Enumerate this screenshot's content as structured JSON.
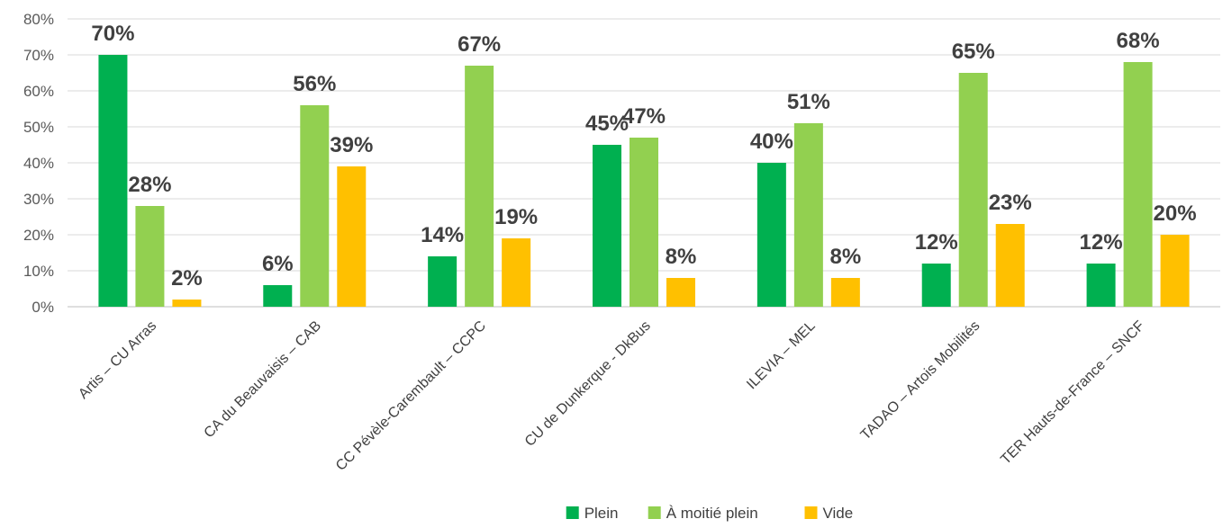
{
  "chart_data": {
    "type": "bar",
    "title": "",
    "xlabel": "",
    "ylabel": "",
    "ylim": [
      0,
      80
    ],
    "yticks": [
      0,
      10,
      20,
      30,
      40,
      50,
      60,
      70,
      80
    ],
    "ytick_labels": [
      "0%",
      "10%",
      "20%",
      "30%",
      "40%",
      "50%",
      "60%",
      "70%",
      "80%"
    ],
    "grid": true,
    "legend_position": "bottom",
    "categories": [
      "Artis – CU Arras",
      "CA du Beauvaisis – CAB",
      "CC Pévèle-Carembault – CCPC",
      "CU de Dunkerque - DkBus",
      "ILEVIA – MEL",
      "TADAO – Artois Mobilités",
      "TER Hauts-de-France – SNCF"
    ],
    "series": [
      {
        "name": "Plein",
        "color": "#00b050",
        "values": [
          70,
          6,
          14,
          45,
          40,
          12,
          12
        ],
        "labels": [
          "70%",
          "6%",
          "14%",
          "45%",
          "40%",
          "12%",
          "12%"
        ]
      },
      {
        "name": "À moitié plein",
        "color": "#92d050",
        "values": [
          28,
          56,
          67,
          47,
          51,
          65,
          68
        ],
        "labels": [
          "28%",
          "56%",
          "67%",
          "47%",
          "51%",
          "65%",
          "68%"
        ]
      },
      {
        "name": "Vide",
        "color": "#ffc000",
        "values": [
          2,
          39,
          19,
          8,
          8,
          23,
          20
        ],
        "labels": [
          "2%",
          "39%",
          "19%",
          "8%",
          "8%",
          "23%",
          "20%"
        ]
      }
    ]
  }
}
